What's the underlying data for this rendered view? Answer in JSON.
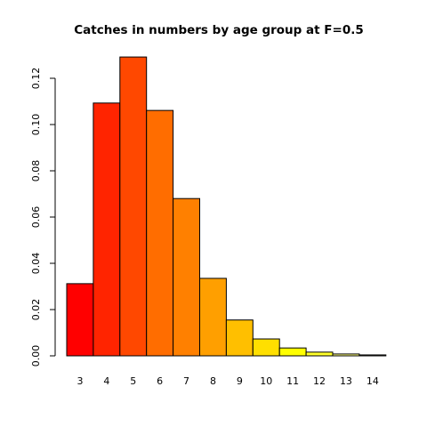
{
  "chart_data": {
    "type": "bar",
    "title": "Catches in numbers by age group at F=0.5",
    "xlabel": "",
    "ylabel": "",
    "categories": [
      "3",
      "4",
      "5",
      "6",
      "7",
      "8",
      "9",
      "10",
      "11",
      "12",
      "13",
      "14"
    ],
    "values": [
      0.0312,
      0.1093,
      0.1292,
      0.1061,
      0.068,
      0.0335,
      0.0155,
      0.0073,
      0.0034,
      0.0016,
      0.0008,
      0.0004
    ],
    "colors": [
      "#FF0000",
      "#FF2400",
      "#FF4800",
      "#FF6D00",
      "#FF8000",
      "#FF9F00",
      "#FFBF00",
      "#FFDF00",
      "#FFFF00",
      "#FFFF2A",
      "#FFFF80",
      "#FFFFD5"
    ],
    "ylim": [
      0,
      0.13
    ],
    "yticks": [
      "0.00",
      "0.02",
      "0.04",
      "0.06",
      "0.08",
      "0.10",
      "0.12"
    ],
    "grid": false,
    "legend": "none"
  }
}
